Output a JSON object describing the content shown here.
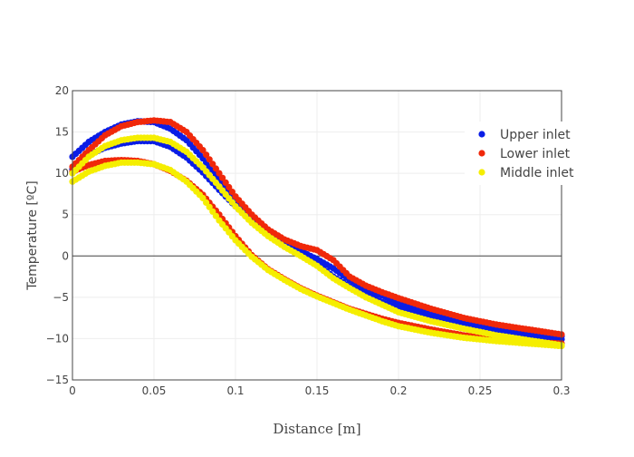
{
  "chart_data": {
    "type": "scatter",
    "title": "",
    "xlabel": "Distance [m]",
    "ylabel": "Temperature [ºC]",
    "xlim": [
      0,
      0.3
    ],
    "ylim": [
      -15,
      20
    ],
    "x_ticks": [
      "0",
      "0.05",
      "0.1",
      "0.15",
      "0.2",
      "0.25",
      "0.3"
    ],
    "y_ticks": [
      "−15",
      "−10",
      "−5",
      "0",
      "5",
      "10",
      "15",
      "20"
    ],
    "grid": true,
    "zero_line": true,
    "legend_position": "right",
    "series": [
      {
        "name": "Upper inlet",
        "color": "#0a1de6",
        "curves": [
          {
            "x": [
              0,
              0.01,
              0.02,
              0.03,
              0.04,
              0.05,
              0.06,
              0.07,
              0.08,
              0.09,
              0.1,
              0.11,
              0.12,
              0.13,
              0.14,
              0.15,
              0.16,
              0.17,
              0.18,
              0.19,
              0.2,
              0.22,
              0.24,
              0.26,
              0.28,
              0.3
            ],
            "y": [
              12.0,
              13.8,
              15.0,
              15.9,
              16.3,
              16.2,
              15.4,
              14.0,
              11.8,
              9.3,
              6.8,
              4.6,
              2.8,
              1.5,
              0.6,
              -0.4,
              -1.5,
              -2.9,
              -4.0,
              -4.8,
              -5.6,
              -6.8,
              -7.8,
              -8.6,
              -9.2,
              -9.7
            ]
          },
          {
            "x": [
              0,
              0.01,
              0.02,
              0.03,
              0.04,
              0.05,
              0.06,
              0.07,
              0.08,
              0.09,
              0.1,
              0.11,
              0.12,
              0.13,
              0.14,
              0.15,
              0.16,
              0.17,
              0.18,
              0.19,
              0.2,
              0.22,
              0.24,
              0.26,
              0.28,
              0.3
            ],
            "y": [
              10.5,
              12.2,
              13.1,
              13.6,
              13.9,
              13.9,
              13.2,
              11.9,
              10.1,
              8.0,
              6.0,
              4.2,
              2.7,
              1.4,
              0.3,
              -1.0,
              -2.5,
              -3.7,
              -4.7,
              -5.6,
              -6.3,
              -7.5,
              -8.3,
              -9.0,
              -9.5,
              -10.1
            ]
          }
        ]
      },
      {
        "name": "Lower inlet",
        "color": "#f0280a",
        "curves": [
          {
            "x": [
              0,
              0.01,
              0.02,
              0.03,
              0.04,
              0.05,
              0.06,
              0.07,
              0.08,
              0.09,
              0.1,
              0.11,
              0.12,
              0.13,
              0.14,
              0.15,
              0.16,
              0.17,
              0.18,
              0.19,
              0.2,
              0.22,
              0.24,
              0.26,
              0.28,
              0.3
            ],
            "y": [
              10.8,
              12.8,
              14.6,
              15.7,
              16.2,
              16.4,
              16.2,
              15.0,
              12.8,
              10.0,
              7.2,
              5.0,
              3.2,
              2.0,
              1.2,
              0.7,
              -0.5,
              -2.5,
              -3.6,
              -4.4,
              -5.1,
              -6.4,
              -7.5,
              -8.3,
              -8.9,
              -9.5
            ]
          },
          {
            "x": [
              0,
              0.01,
              0.02,
              0.03,
              0.04,
              0.05,
              0.06,
              0.07,
              0.08,
              0.09,
              0.1,
              0.11,
              0.12,
              0.13,
              0.14,
              0.15,
              0.16,
              0.17,
              0.18,
              0.19,
              0.2,
              0.22,
              0.24,
              0.26,
              0.28,
              0.3
            ],
            "y": [
              10.2,
              11.0,
              11.5,
              11.6,
              11.5,
              11.1,
              10.3,
              9.1,
              7.4,
              5.0,
              2.4,
              0.1,
              -1.6,
              -2.8,
              -3.9,
              -4.8,
              -5.6,
              -6.4,
              -7.0,
              -7.6,
              -8.1,
              -8.9,
              -9.6,
              -10.1,
              -10.4,
              -10.6
            ]
          }
        ]
      },
      {
        "name": "Middle inlet",
        "color": "#f5ee00",
        "curves": [
          {
            "x": [
              0,
              0.01,
              0.02,
              0.03,
              0.04,
              0.05,
              0.06,
              0.07,
              0.08,
              0.09,
              0.1,
              0.11,
              0.12,
              0.13,
              0.14,
              0.15,
              0.16,
              0.17,
              0.18,
              0.19,
              0.2,
              0.22,
              0.24,
              0.26,
              0.28,
              0.3
            ],
            "y": [
              10.0,
              12.0,
              13.3,
              14.0,
              14.3,
              14.3,
              13.8,
              12.6,
              10.7,
              8.4,
              6.0,
              4.0,
              2.4,
              1.1,
              0.0,
              -1.2,
              -2.7,
              -3.9,
              -5.0,
              -5.9,
              -6.8,
              -7.9,
              -8.8,
              -9.6,
              -10.2,
              -10.8
            ]
          },
          {
            "x": [
              0,
              0.01,
              0.02,
              0.03,
              0.04,
              0.05,
              0.06,
              0.07,
              0.08,
              0.09,
              0.1,
              0.11,
              0.12,
              0.13,
              0.14,
              0.15,
              0.16,
              0.17,
              0.18,
              0.19,
              0.2,
              0.22,
              0.24,
              0.26,
              0.28,
              0.3
            ],
            "y": [
              9.0,
              10.2,
              10.9,
              11.3,
              11.3,
              11.1,
              10.4,
              9.0,
              7.0,
              4.3,
              1.9,
              -0.1,
              -1.7,
              -2.9,
              -4.0,
              -4.9,
              -5.7,
              -6.5,
              -7.2,
              -7.9,
              -8.5,
              -9.3,
              -9.9,
              -10.3,
              -10.6,
              -10.9
            ]
          }
        ]
      }
    ]
  }
}
